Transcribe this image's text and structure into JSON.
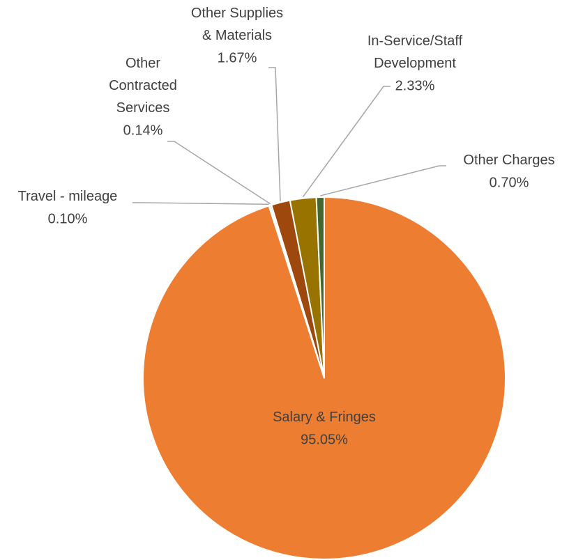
{
  "chart_data": {
    "type": "pie",
    "categories": [
      "Salary & Fringes",
      "Travel - mileage",
      "Other Contracted Services",
      "Other Supplies & Materials",
      "In-Service/Staff Development",
      "Other Charges"
    ],
    "values": [
      95.05,
      0.1,
      0.14,
      1.67,
      2.33,
      0.7
    ],
    "value_labels": [
      "95.05%",
      "0.10%",
      "0.14%",
      "1.67%",
      "2.33%",
      "0.70%"
    ],
    "colors": [
      "#ED7D31",
      "#4472C4",
      "#5B9BD5",
      "#9E480E",
      "#997300",
      "#43682B"
    ]
  }
}
